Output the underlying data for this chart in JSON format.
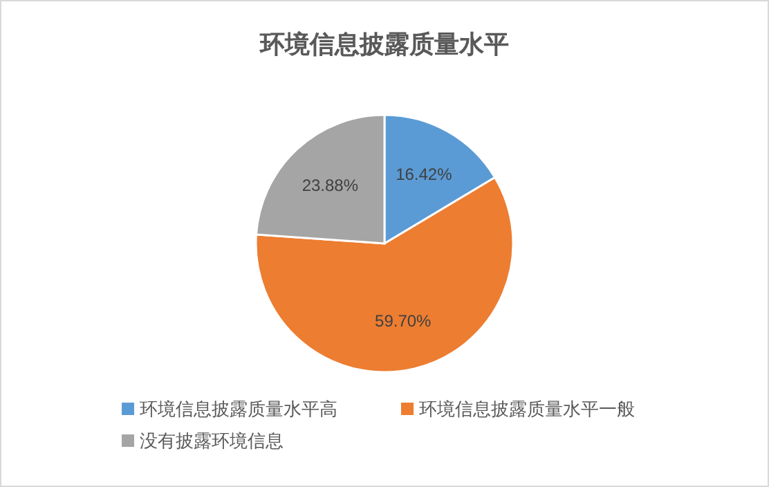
{
  "chart_data": {
    "type": "pie",
    "title": "环境信息披露质量水平",
    "categories": [
      "环境信息披露质量水平高",
      "环境信息披露质量水平一般",
      "没有披露环境信息"
    ],
    "values": [
      16.42,
      59.7,
      23.88
    ],
    "colors": [
      "#5b9bd5",
      "#ed7d31",
      "#a5a5a5"
    ],
    "value_labels": [
      "16.42%",
      "59.70%",
      "23.88%"
    ],
    "legend": "bottom"
  }
}
